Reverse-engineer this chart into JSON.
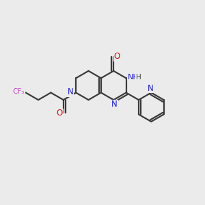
{
  "background_color": "#ebebeb",
  "bond_color": "#3a3a3a",
  "n_color": "#2020cc",
  "o_color": "#cc1010",
  "f_color": "#cc44cc",
  "figsize": [
    3.0,
    3.0
  ],
  "dpi": 100,
  "xlim": [
    0,
    10
  ],
  "ylim": [
    0,
    10
  ]
}
